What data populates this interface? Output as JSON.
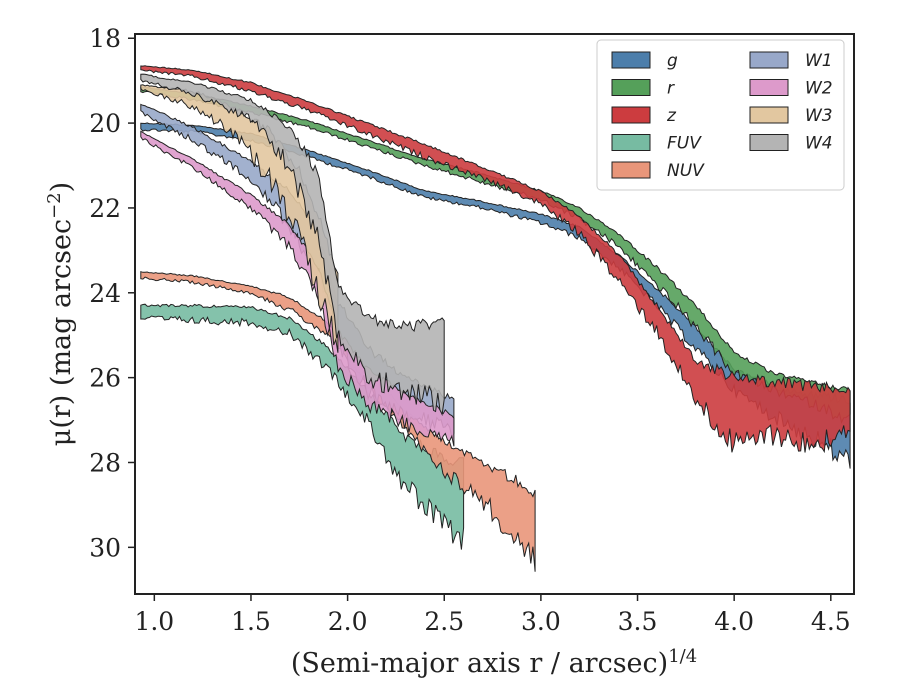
{
  "chart_data": {
    "type": "area",
    "title": "",
    "xlabel": "(Semi-major axis r / arcsec)",
    "xlabel_sup": "1/4",
    "ylabel": "μ(r) (mag arcsec",
    "ylabel_sup": "−2",
    "ylabel_close": ")",
    "xlim": [
      0.9,
      4.62
    ],
    "ylim": [
      31.1,
      17.9
    ],
    "y_inverted": true,
    "xticks": [
      1.0,
      1.5,
      2.0,
      2.5,
      3.0,
      3.5,
      4.0,
      4.5
    ],
    "xtick_labels": [
      "1.0",
      "1.5",
      "2.0",
      "2.5",
      "3.0",
      "3.5",
      "4.0",
      "4.5"
    ],
    "yticks": [
      18,
      20,
      22,
      24,
      26,
      28,
      30
    ],
    "ytick_labels": [
      "18",
      "20",
      "22",
      "24",
      "26",
      "28",
      "30"
    ],
    "grid": false,
    "legend_placement": "top-right",
    "legend_columns": 2,
    "series": [
      {
        "name": "g",
        "color": "#4c7eab",
        "x": [
          0.93,
          1.2,
          1.5,
          1.8,
          2.1,
          2.4,
          2.7,
          3.0,
          3.2,
          3.4,
          3.6,
          3.8,
          4.0,
          4.2,
          4.4,
          4.6
        ],
        "y_bright": [
          20.0,
          20.05,
          20.25,
          20.65,
          21.1,
          21.6,
          21.85,
          22.15,
          22.45,
          23.1,
          23.9,
          24.8,
          25.8,
          26.2,
          26.4,
          26.5
        ],
        "y_faint": [
          20.15,
          20.2,
          20.4,
          20.8,
          21.25,
          21.75,
          22.0,
          22.35,
          22.7,
          23.4,
          24.3,
          25.3,
          26.3,
          26.9,
          27.4,
          28.0
        ]
      },
      {
        "name": "r",
        "color": "#55a05a",
        "x": [
          0.93,
          1.2,
          1.5,
          1.8,
          2.1,
          2.4,
          2.7,
          3.0,
          3.2,
          3.4,
          3.6,
          3.8,
          4.0,
          4.2,
          4.4,
          4.6
        ],
        "y_bright": [
          19.15,
          19.3,
          19.6,
          19.95,
          20.4,
          20.85,
          21.2,
          21.6,
          22.0,
          22.6,
          23.4,
          24.3,
          25.4,
          25.9,
          26.1,
          26.3
        ],
        "y_faint": [
          19.25,
          19.45,
          19.75,
          20.1,
          20.55,
          21.0,
          21.4,
          21.8,
          22.25,
          22.9,
          23.8,
          24.8,
          25.9,
          26.3,
          26.6,
          27.0
        ]
      },
      {
        "name": "z",
        "color": "#cc3c3f",
        "x": [
          0.93,
          1.2,
          1.5,
          1.8,
          2.1,
          2.4,
          2.7,
          3.0,
          3.2,
          3.4,
          3.6,
          3.8,
          4.0,
          4.2,
          4.4,
          4.6
        ],
        "y_bright": [
          18.65,
          18.75,
          19.05,
          19.5,
          20.0,
          20.5,
          21.05,
          21.6,
          22.2,
          23.1,
          24.3,
          25.6,
          26.0,
          26.1,
          26.2,
          26.3
        ],
        "y_faint": [
          18.75,
          18.9,
          19.25,
          19.7,
          20.25,
          20.8,
          21.3,
          21.9,
          22.6,
          23.7,
          24.9,
          26.5,
          27.6,
          27.3,
          27.6,
          27.2
        ]
      },
      {
        "name": "FUV",
        "color": "#77bba2",
        "x": [
          0.93,
          1.2,
          1.5,
          1.7,
          1.9,
          2.1,
          2.3,
          2.5,
          2.6
        ],
        "y_bright": [
          24.3,
          24.3,
          24.35,
          24.6,
          25.3,
          26.3,
          27.4,
          27.9,
          28.0
        ],
        "y_faint": [
          24.6,
          24.65,
          24.7,
          24.95,
          25.8,
          27.0,
          28.6,
          29.5,
          29.8
        ]
      },
      {
        "name": "NUV",
        "color": "#e9967a",
        "x": [
          0.93,
          1.2,
          1.5,
          1.7,
          1.9,
          2.1,
          2.3,
          2.5,
          2.7,
          2.9,
          2.97
        ],
        "y_bright": [
          23.5,
          23.6,
          23.85,
          24.1,
          24.7,
          25.8,
          26.8,
          27.5,
          28.0,
          28.5,
          28.7
        ],
        "y_faint": [
          23.65,
          23.75,
          24.0,
          24.4,
          25.0,
          26.2,
          27.2,
          28.2,
          28.9,
          30.0,
          30.3
        ]
      },
      {
        "name": "W1",
        "color": "#98a8c9",
        "x": [
          0.93,
          1.2,
          1.5,
          1.7,
          1.85,
          1.95,
          2.1,
          2.3,
          2.55
        ],
        "y_bright": [
          19.55,
          20.1,
          20.9,
          21.6,
          22.6,
          24.2,
          25.3,
          26.0,
          26.5
        ],
        "y_faint": [
          19.75,
          20.4,
          21.3,
          22.4,
          23.6,
          25.3,
          26.3,
          26.8,
          27.3
        ]
      },
      {
        "name": "W2",
        "color": "#dd9acb",
        "x": [
          0.93,
          1.2,
          1.5,
          1.7,
          1.85,
          1.95,
          2.1,
          2.3,
          2.55
        ],
        "y_bright": [
          20.2,
          20.85,
          21.7,
          22.4,
          23.4,
          24.9,
          25.8,
          26.4,
          26.9
        ],
        "y_faint": [
          20.35,
          21.05,
          22.0,
          22.9,
          24.1,
          25.7,
          26.6,
          27.1,
          27.5
        ]
      },
      {
        "name": "W3",
        "color": "#e2c7a0",
        "x": [
          0.93,
          1.2,
          1.4,
          1.6,
          1.75,
          1.85,
          1.95
        ],
        "y_bright": [
          19.1,
          19.25,
          19.6,
          20.2,
          21.1,
          22.2,
          23.6
        ],
        "y_faint": [
          19.2,
          19.6,
          20.2,
          21.3,
          22.6,
          24.0,
          25.2
        ]
      },
      {
        "name": "W4",
        "color": "#b4b4b4",
        "x": [
          0.93,
          1.2,
          1.5,
          1.7,
          1.85,
          1.95,
          2.1,
          2.3,
          2.5
        ],
        "y_bright": [
          18.85,
          19.05,
          19.45,
          20.1,
          21.2,
          23.8,
          24.6,
          24.8,
          24.7
        ],
        "y_faint": [
          19.0,
          19.3,
          19.9,
          21.0,
          22.8,
          25.0,
          25.9,
          26.3,
          26.6
        ]
      }
    ]
  }
}
